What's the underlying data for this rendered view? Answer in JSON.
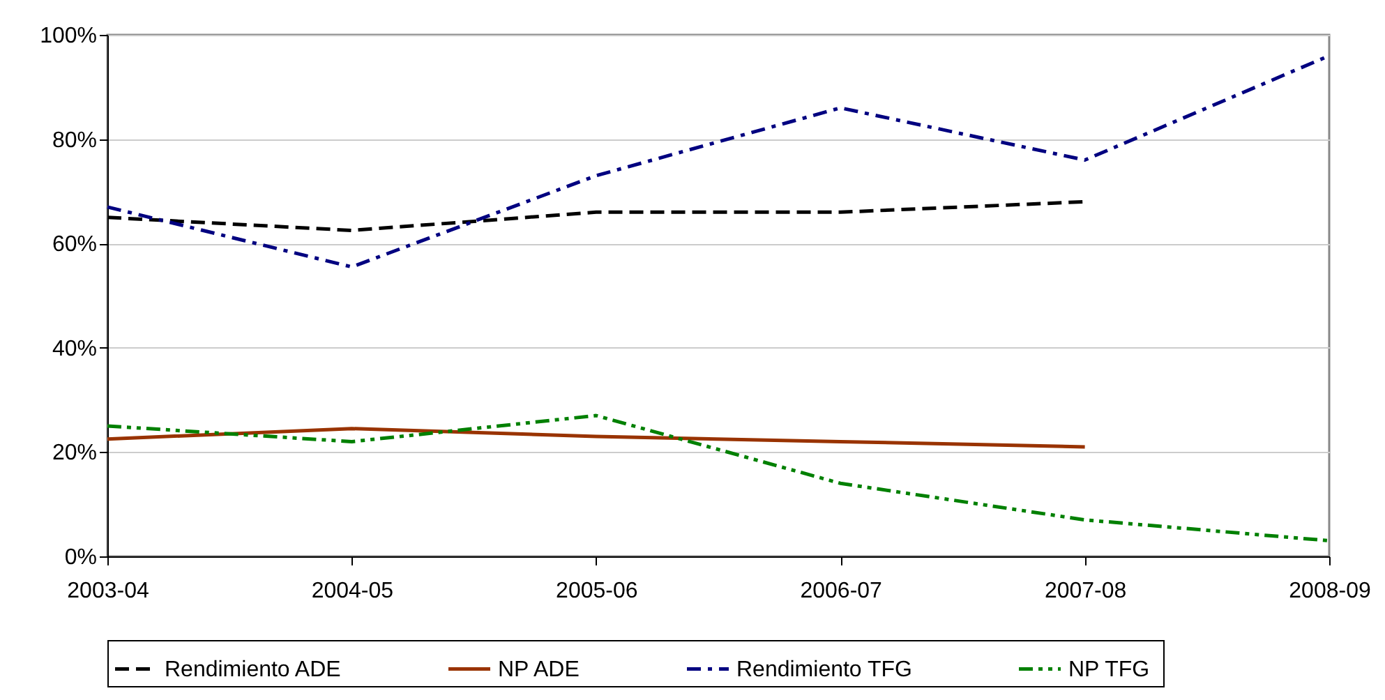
{
  "chart_data": {
    "type": "line",
    "categories": [
      "2003-04",
      "2004-05",
      "2005-06",
      "2006-07",
      "2007-08",
      "2008-09"
    ],
    "series": [
      {
        "name": "Rendimiento ADE",
        "color": "#000000",
        "line_style": "dashed",
        "values": [
          65,
          62.5,
          66,
          66,
          68,
          null
        ]
      },
      {
        "name": "NP ADE",
        "color": "#993300",
        "line_style": "solid",
        "values": [
          22.5,
          24.5,
          23,
          22,
          21,
          null
        ]
      },
      {
        "name": "Rendimiento TFG",
        "color": "#000080",
        "line_style": "dashdot",
        "values": [
          67,
          55.5,
          73,
          86,
          76,
          96
        ]
      },
      {
        "name": "NP  TFG",
        "color": "#008000",
        "line_style": "dashdotdot",
        "values": [
          25,
          22,
          27,
          14,
          7,
          3
        ]
      }
    ],
    "ylim": [
      0,
      100
    ],
    "yticks": [
      {
        "value": 0,
        "label": "0%"
      },
      {
        "value": 20,
        "label": "20%"
      },
      {
        "value": 40,
        "label": "40%"
      },
      {
        "value": 60,
        "label": "60%"
      },
      {
        "value": 80,
        "label": "80%"
      },
      {
        "value": 100,
        "label": "100%"
      }
    ],
    "grid": "y",
    "legend": "bottom",
    "marker": "none"
  }
}
